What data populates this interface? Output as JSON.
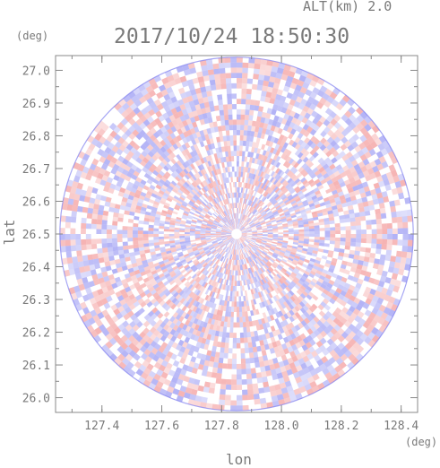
{
  "header": {
    "altitude_label": "ALT(km) 2.0",
    "timestamp": "2017/10/24 18:50:30"
  },
  "axes": {
    "y_unit": "(deg)",
    "x_unit": "(deg)",
    "x_label": "lon",
    "y_label": "lat"
  },
  "chart_data": {
    "type": "heatmap",
    "title": "2017/10/24 18:50:30",
    "subtitle": "ALT(km) 2.0",
    "xlabel": "lon",
    "ylabel": "lat",
    "x_unit": "(deg)",
    "y_unit": "(deg)",
    "xlim": [
      127.245,
      128.455
    ],
    "ylim": [
      25.955,
      27.045
    ],
    "x_ticks": [
      "127.4",
      "127.6",
      "127.8",
      "128.0",
      "128.2",
      "128.4"
    ],
    "x_tick_values": [
      127.4,
      127.6,
      127.8,
      128.0,
      128.2,
      128.4
    ],
    "y_ticks": [
      "26.0",
      "26.1",
      "26.2",
      "26.3",
      "26.4",
      "26.5",
      "26.6",
      "26.7",
      "26.8",
      "26.9",
      "27.0"
    ],
    "y_tick_values": [
      26.0,
      26.1,
      26.2,
      26.3,
      26.4,
      26.5,
      26.6,
      26.7,
      26.8,
      26.9,
      27.0
    ],
    "scan_center": {
      "lon": 127.85,
      "lat": 26.5
    },
    "scan_radius_deg_lat": 0.54,
    "colormap": {
      "positive": "#f08080",
      "negative": "#8080f0",
      "zero": "#ffffff"
    },
    "grid": false,
    "legend": "none"
  }
}
